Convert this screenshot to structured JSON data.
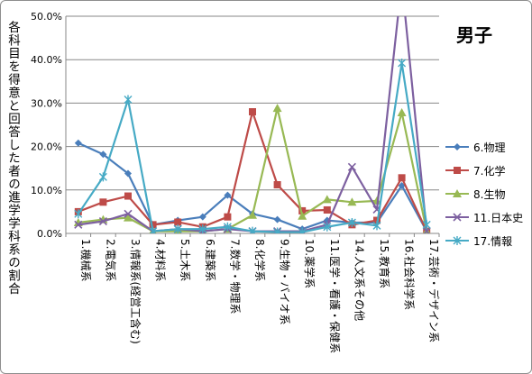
{
  "chart_data": {
    "type": "line",
    "title": "男子",
    "ylabel": "各科目を得意と回答した者の進学学科系の割合",
    "xlabel": "",
    "ylim": [
      0,
      50
    ],
    "yticks": [
      "0.0%",
      "10.0%",
      "20.0%",
      "30.0%",
      "40.0%",
      "50.0%"
    ],
    "grid": "horizontal",
    "legend_position": "right",
    "categories": [
      "1.機械系",
      "2.電気系",
      "3.情報系(経営工含む)",
      "4.材料系",
      "5.土木系",
      "6.建築系",
      "7.数学・物理系",
      "8.化学系",
      "9.生物・バイオ系",
      "10.薬学系",
      "11.医学・看護・保健系",
      "14.人文系その他",
      "15.教育系",
      "16.社会科学系",
      "17.芸術・デザイン系"
    ],
    "series": [
      {
        "name": "6.物理",
        "color": "#4a7ebb",
        "marker": "diamond",
        "values": [
          20.8,
          18.2,
          13.8,
          2.0,
          3.0,
          3.8,
          8.8,
          4.5,
          3.2,
          1.0,
          3.0,
          2.5,
          2.5,
          11.0,
          0.5
        ]
      },
      {
        "name": "7.化学",
        "color": "#be4b48",
        "marker": "square",
        "values": [
          5.0,
          7.2,
          8.6,
          2.0,
          2.6,
          1.5,
          3.8,
          28.0,
          11.2,
          5.2,
          5.4,
          2.0,
          3.0,
          12.8,
          0.5
        ]
      },
      {
        "name": "8.生物",
        "color": "#98b954",
        "marker": "triangle",
        "values": [
          2.5,
          3.2,
          3.6,
          0.5,
          0.5,
          0.5,
          1.0,
          4.2,
          28.8,
          4.0,
          7.8,
          7.2,
          7.5,
          27.8,
          0.5
        ]
      },
      {
        "name": "11.日本史",
        "color": "#7d60a0",
        "marker": "x",
        "values": [
          2.0,
          2.8,
          4.5,
          0.5,
          1.0,
          0.5,
          1.0,
          0.5,
          0.5,
          0.5,
          2.0,
          15.3,
          5.5,
          58.0,
          0.5
        ]
      },
      {
        "name": "17.情報",
        "color": "#46aac5",
        "marker": "star",
        "values": [
          4.5,
          13.0,
          30.8,
          0.5,
          1.0,
          1.0,
          1.5,
          0.5,
          0.3,
          0.3,
          1.5,
          2.5,
          1.8,
          39.2,
          2.0
        ]
      }
    ]
  }
}
